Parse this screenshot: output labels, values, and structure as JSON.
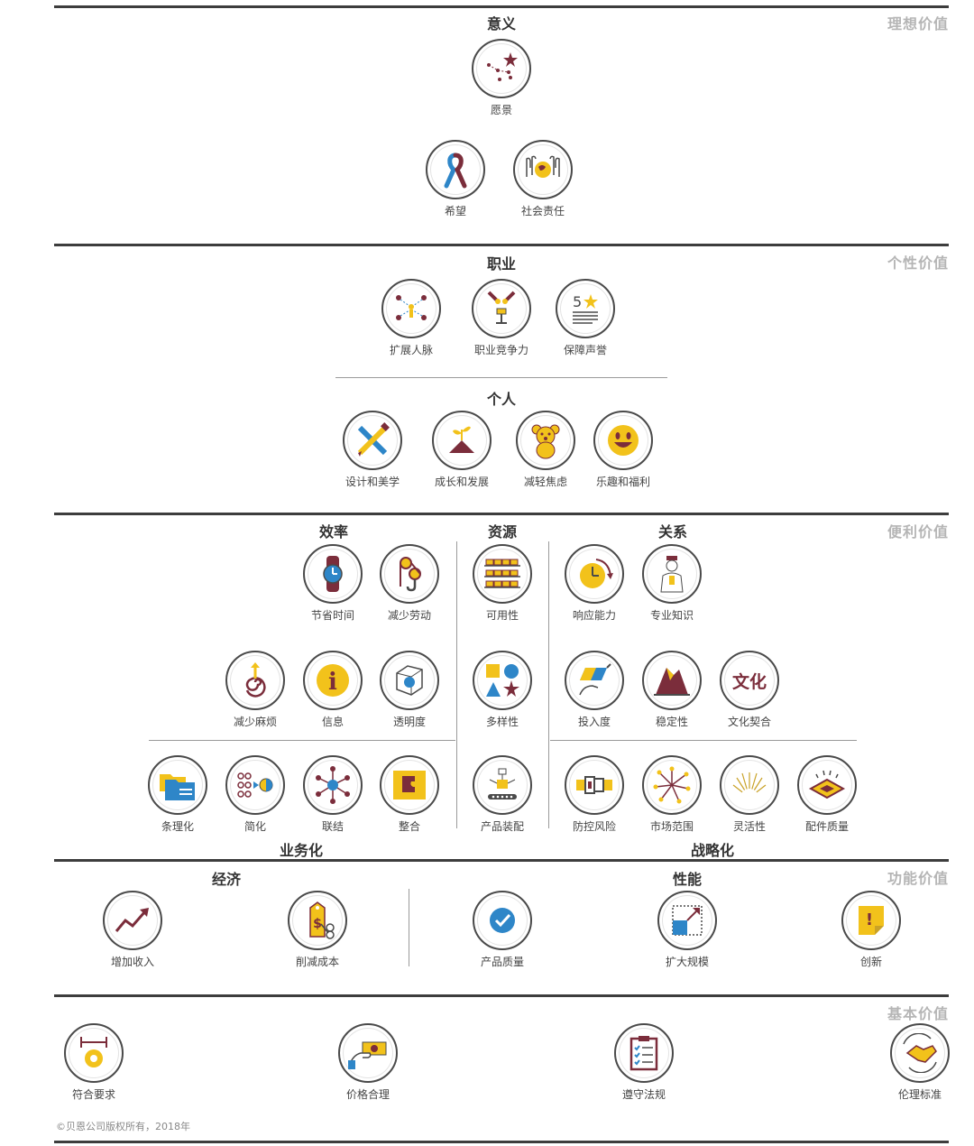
{
  "copyright": "©贝恩公司版权所有，2018年",
  "tiers": {
    "t1": "理想价值",
    "t2": "个性价值",
    "t3": "便利价值",
    "t4": "功能价值",
    "t5": "基本价值"
  },
  "sections": {
    "s_meaning": "意义",
    "s_career": "职业",
    "s_personal": "个人",
    "s_efficiency": "效率",
    "s_resources": "资源",
    "s_relations": "关系",
    "s_business": "业务化",
    "s_strategic": "战略化",
    "s_economy": "经济",
    "s_performance": "性能"
  },
  "items": {
    "i01": "愿景",
    "i02": "希望",
    "i03": "社会责任",
    "i04": "扩展人脉",
    "i05": "职业竞争力",
    "i06": "保障声誉",
    "i07": "设计和美学",
    "i08": "成长和发展",
    "i09": "减轻焦虑",
    "i10": "乐趣和福利",
    "i11": "节省时间",
    "i12": "减少劳动",
    "i13": "可用性",
    "i14": "响应能力",
    "i15": "专业知识",
    "i16": "减少麻烦",
    "i17": "信息",
    "i18": "透明度",
    "i19": "多样性",
    "i20": "投入度",
    "i21": "稳定性",
    "i22": "文化契合",
    "i23": "条理化",
    "i24": "简化",
    "i25": "联结",
    "i26": "整合",
    "i27": "产品装配",
    "i28": "防控风险",
    "i29": "市场范围",
    "i30": "灵活性",
    "i31": "配件质量",
    "i32": "增加收入",
    "i33": "削减成本",
    "i34": "产品质量",
    "i35": "扩大规模",
    "i36": "创新",
    "i37": "符合要求",
    "i38": "价格合理",
    "i39": "遵守法规",
    "i40": "伦理标准"
  },
  "icon_text": {
    "culture": "文化",
    "five": "5",
    "dollar": "$",
    "info": "i",
    "excl": "!"
  },
  "colors": {
    "accent_yellow": "#f2c21b",
    "accent_maroon": "#7b2d3b",
    "accent_blue": "#2e86c8",
    "outline": "#4a4a4a"
  }
}
